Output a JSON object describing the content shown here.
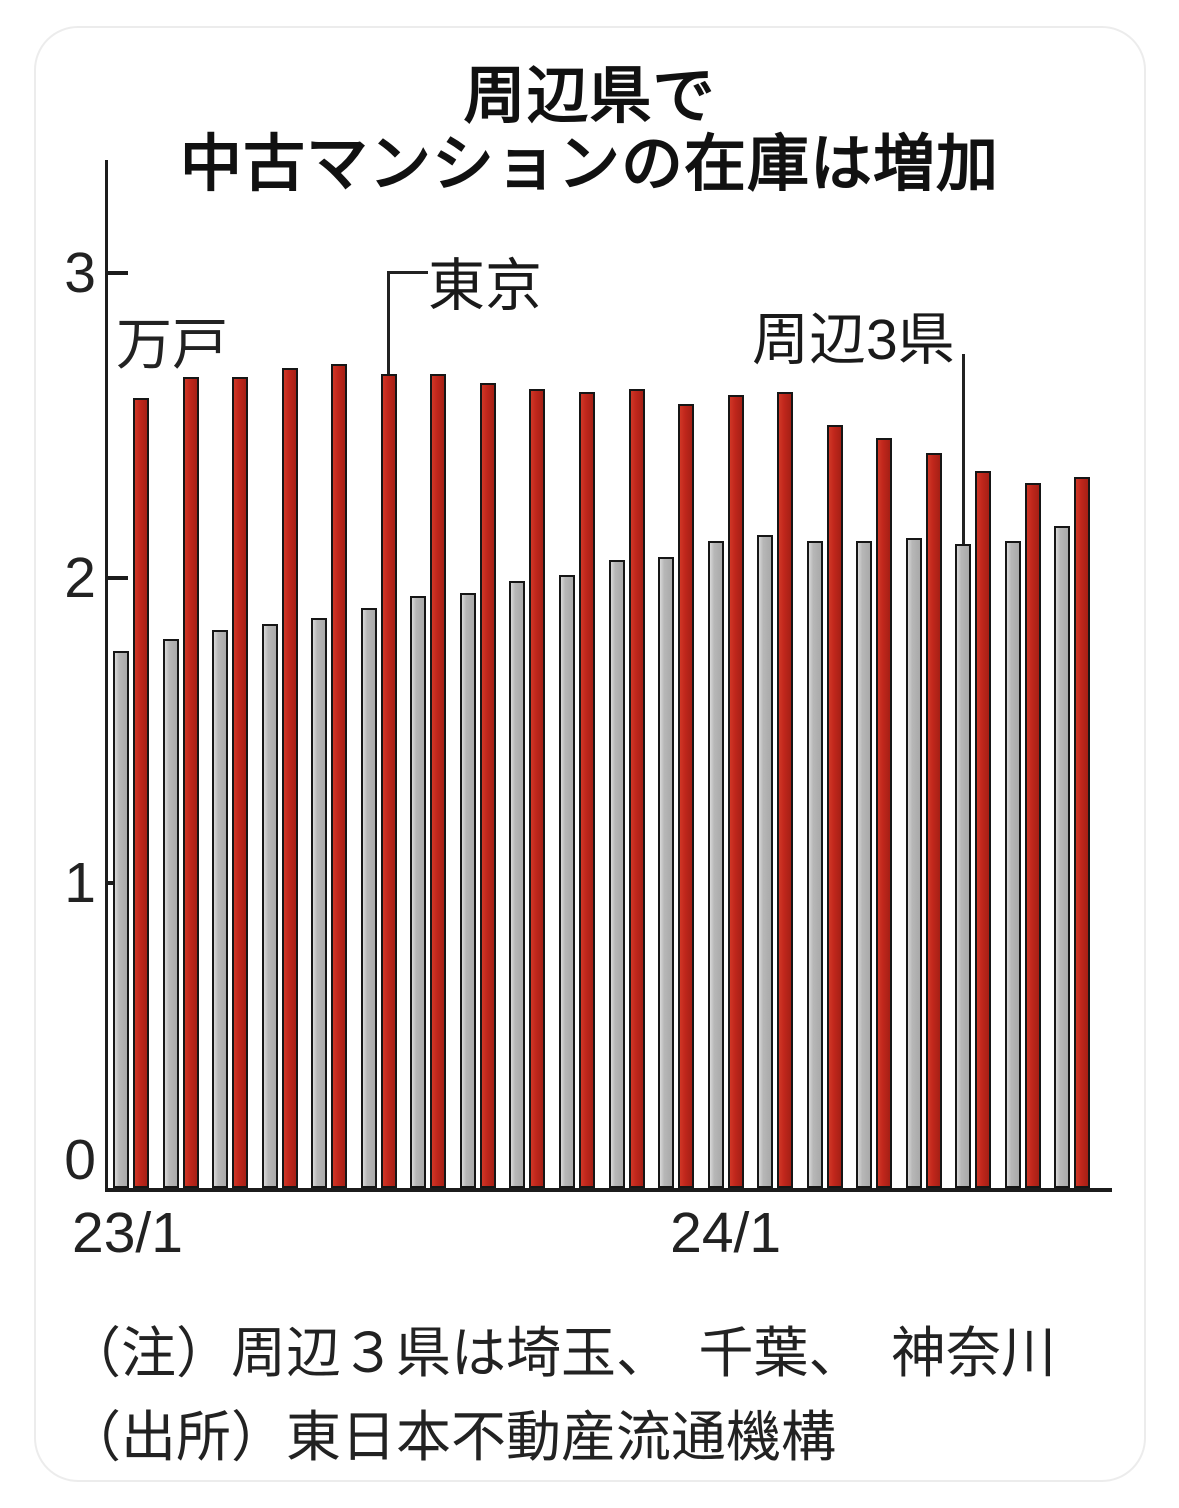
{
  "title": {
    "line1": "周辺県で",
    "line2": "中古マンションの在庫は増加"
  },
  "y_axis": {
    "unit_label": "万戸",
    "tick_labels": [
      "3",
      "2",
      "1",
      "0"
    ]
  },
  "x_axis": {
    "label_start": "23/1",
    "label_mid": "24/1"
  },
  "annotations": {
    "tokyo_label": "東京",
    "shuhen_label": "周辺3県",
    "tokyo_points_to": "23/6",
    "shuhen_points_to": "24/6"
  },
  "notes": {
    "note": "（注）周辺３県は埼玉、　千葉、　神奈川",
    "source": "（出所）東日本不動産流通機構"
  },
  "colors": {
    "tokyo_red": "#c1271c",
    "shuhen_gray": "#b7b7b7",
    "axis": "#1c1c1c"
  },
  "chart_data": {
    "type": "bar",
    "title": "周辺県で中古マンションの在庫は増加",
    "unit": "万戸",
    "ylabel": "万戸",
    "ylim": [
      0,
      3
    ],
    "yticks": [
      0,
      1,
      2,
      3
    ],
    "grid": false,
    "legend_position": "inline-callouts",
    "categories": [
      "23/1",
      "23/2",
      "23/3",
      "23/4",
      "23/5",
      "23/6",
      "23/7",
      "23/8",
      "23/9",
      "23/10",
      "23/11",
      "23/12",
      "24/1",
      "24/2",
      "24/3",
      "24/4",
      "24/5",
      "24/6",
      "24/7",
      "24/8"
    ],
    "series": [
      {
        "name": "周辺3県",
        "color": "#b7b7b7",
        "values": [
          1.76,
          1.8,
          1.83,
          1.85,
          1.87,
          1.9,
          1.94,
          1.95,
          1.99,
          2.01,
          2.06,
          2.07,
          2.12,
          2.14,
          2.12,
          2.12,
          2.13,
          2.11,
          2.12,
          2.17
        ]
      },
      {
        "name": "東京",
        "color": "#c1271c",
        "values": [
          2.59,
          2.66,
          2.66,
          2.69,
          2.7,
          2.67,
          2.67,
          2.64,
          2.62,
          2.61,
          2.62,
          2.57,
          2.6,
          2.61,
          2.5,
          2.46,
          2.41,
          2.35,
          2.31,
          2.33
        ]
      }
    ]
  }
}
